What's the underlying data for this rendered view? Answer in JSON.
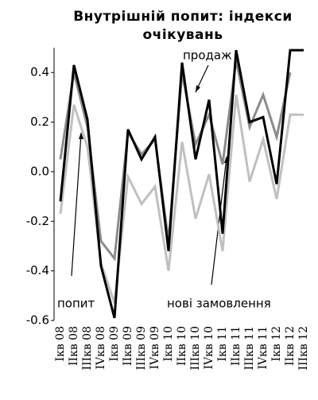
{
  "chart_data": {
    "type": "line",
    "title": "Внутрішній попит: індекси очікувань",
    "categories": [
      "Iкв 08",
      "IIкв 08",
      "IIIкв 08",
      "IVкв 08",
      "Iкв 09",
      "IIкв 09",
      "IIIкв 09",
      "IVкв 09",
      "Iкв 10",
      "IIкв 10",
      "IIIкв 10",
      "IVкв 10",
      "Iкв 11",
      "IIкв 11",
      "IIIкв 11",
      "IVкв 11",
      "Iкв 12",
      "IIкв 12",
      "IIIкв 12"
    ],
    "series": [
      {
        "name": "попит",
        "color": "#8c8c8c",
        "values": [
          0.05,
          0.4,
          0.18,
          -0.28,
          -0.35,
          0.16,
          0.07,
          0.13,
          -0.28,
          0.4,
          0.11,
          0.23,
          0.03,
          0.45,
          0.18,
          0.31,
          0.14,
          0.4,
          null
        ]
      },
      {
        "name": "нові замовлення",
        "color": "#c0c0c0",
        "values": [
          -0.17,
          0.27,
          0.1,
          -0.37,
          -0.53,
          -0.02,
          -0.13,
          -0.06,
          -0.4,
          0.12,
          -0.19,
          -0.01,
          -0.32,
          0.31,
          -0.04,
          0.13,
          -0.11,
          0.23,
          0.23
        ]
      },
      {
        "name": "продаж",
        "color": "#000000",
        "values": [
          -0.12,
          0.43,
          0.21,
          -0.38,
          -0.59,
          0.17,
          0.05,
          0.14,
          -0.32,
          0.44,
          0.05,
          0.29,
          -0.25,
          0.49,
          0.2,
          0.22,
          -0.05,
          0.49,
          0.49
        ]
      }
    ],
    "ylim": [
      -0.6,
      0.5
    ],
    "yticks": [
      -0.6,
      -0.4,
      -0.2,
      {
        "value": 0,
        "label": "0.0"
      },
      0.2,
      0.4
    ],
    "grid": false
  }
}
